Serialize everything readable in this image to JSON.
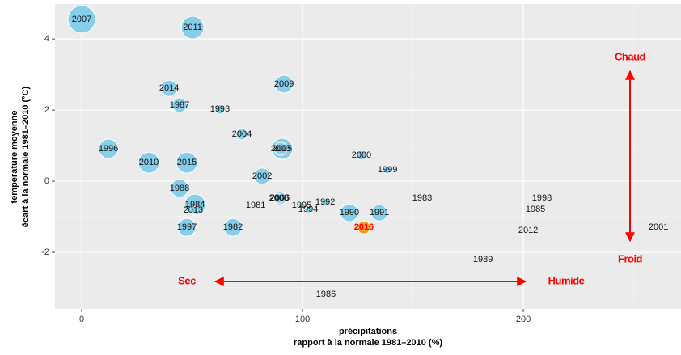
{
  "chart_data": {
    "type": "scatter",
    "xlabel": [
      "précipitations",
      "rapport à la normale 1981–2010 (%)"
    ],
    "ylabel": [
      "température moyenne",
      "écart à la normale 1981–2010 (°C)"
    ],
    "xlim": [
      -12.1,
      271.4
    ],
    "ylim": [
      -3.59,
      4.98
    ],
    "xticks": [
      0,
      100,
      200
    ],
    "yticks": [
      -2,
      0,
      2,
      4
    ],
    "xminor": [
      50,
      150,
      250
    ],
    "yminor": [
      -3,
      -1,
      1,
      3
    ],
    "grid": true,
    "color": "#87ceeb",
    "points": [
      {
        "label": "2007",
        "x": 0,
        "y": 4.55,
        "size": 17
      },
      {
        "label": "2011",
        "x": 50.2,
        "y": 4.32,
        "size": 14
      },
      {
        "label": "2014",
        "x": 39.6,
        "y": 2.61,
        "size": 10
      },
      {
        "label": "2009",
        "x": 91.6,
        "y": 2.73,
        "size": 11
      },
      {
        "label": "1987",
        "x": 44.3,
        "y": 2.14,
        "size": 9
      },
      {
        "label": "1993",
        "x": 62.6,
        "y": 2.02,
        "size": 6
      },
      {
        "label": "2004",
        "x": 72.5,
        "y": 1.32,
        "size": 7
      },
      {
        "label": "1996",
        "x": 12.1,
        "y": 0.91,
        "size": 12
      },
      {
        "label": "2005",
        "x": 90.8,
        "y": 0.91,
        "size": 13
      },
      {
        "label": "2003",
        "x": 90.1,
        "y": 0.91,
        "size": 8
      },
      {
        "label": "2010",
        "x": 30.4,
        "y": 0.52,
        "size": 13
      },
      {
        "label": "2015",
        "x": 47.6,
        "y": 0.52,
        "size": 13
      },
      {
        "label": "2000",
        "x": 126.7,
        "y": 0.73,
        "size": 6
      },
      {
        "label": "1999",
        "x": 138.5,
        "y": 0.32,
        "size": 5
      },
      {
        "label": "2002",
        "x": 81.7,
        "y": 0.14,
        "size": 10
      },
      {
        "label": "1988",
        "x": 44.3,
        "y": -0.2,
        "size": 11
      },
      {
        "label": "2006",
        "x": 89.7,
        "y": -0.48,
        "size": 8
      },
      {
        "label": "2008",
        "x": 89.3,
        "y": -0.48,
        "size": 6
      },
      {
        "label": "1984",
        "x": 51.3,
        "y": -0.66,
        "size": 13
      },
      {
        "label": "2013",
        "x": 50.5,
        "y": -0.82,
        "size": 5
      },
      {
        "label": "1981",
        "x": 78.8,
        "y": -0.68,
        "size": 3
      },
      {
        "label": "1995",
        "x": 99.6,
        "y": -0.68,
        "size": 4
      },
      {
        "label": "1992",
        "x": 110.3,
        "y": -0.59,
        "size": 5
      },
      {
        "label": "1994",
        "x": 102.6,
        "y": -0.8,
        "size": 4
      },
      {
        "label": "1990",
        "x": 121.2,
        "y": -0.89,
        "size": 11
      },
      {
        "label": "1991",
        "x": 134.8,
        "y": -0.89,
        "size": 10
      },
      {
        "label": "1983",
        "x": 154.2,
        "y": -0.48,
        "size": 1
      },
      {
        "label": "1998",
        "x": 208.4,
        "y": -0.48,
        "size": 1
      },
      {
        "label": "1985",
        "x": 205.5,
        "y": -0.8,
        "size": 2
      },
      {
        "label": "2012",
        "x": 202.2,
        "y": -1.39,
        "size": 2
      },
      {
        "label": "2001",
        "x": 261.2,
        "y": -1.3,
        "size": 1
      },
      {
        "label": "1997",
        "x": 47.6,
        "y": -1.3,
        "size": 11
      },
      {
        "label": "1982",
        "x": 68.5,
        "y": -1.3,
        "size": 11
      },
      {
        "label": "2016",
        "x": 127.8,
        "y": -1.3,
        "size": 8,
        "color": "#f4a21c",
        "label_color": "#ff0000"
      },
      {
        "label": "1989",
        "x": 181.7,
        "y": -2.2,
        "size": 1
      },
      {
        "label": "1986",
        "x": 110.6,
        "y": -3.18,
        "size": 1
      }
    ],
    "annotations": [
      "Chaud",
      "Froid",
      "Sec",
      "Humide"
    ]
  }
}
